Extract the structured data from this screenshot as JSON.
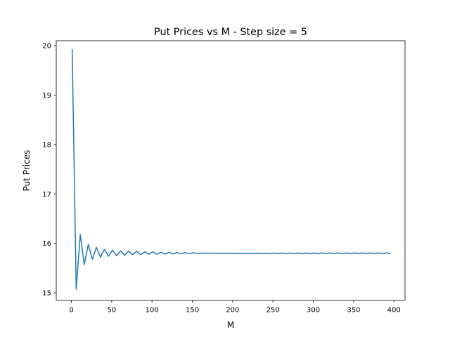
{
  "chart_data": {
    "type": "line",
    "title": "Put Prices vs M - Step size = 5",
    "xlabel": "M",
    "ylabel": "Put Prices",
    "xlim": [
      -18.75,
      413.75
    ],
    "ylim": [
      14.85,
      20.1
    ],
    "xticks": [
      0,
      50,
      100,
      150,
      200,
      250,
      300,
      350,
      400
    ],
    "yticks": [
      15,
      16,
      17,
      18,
      19,
      20
    ],
    "grid": false,
    "line_color": "#1f77b4",
    "series": [
      {
        "x": [
          1,
          6,
          11,
          16,
          21,
          26,
          31,
          36,
          41,
          46,
          51,
          56,
          61,
          66,
          71,
          76,
          81,
          86,
          91,
          96,
          101,
          106,
          111,
          116,
          121,
          126,
          131,
          136,
          141,
          146,
          151,
          156,
          161,
          166,
          171,
          176,
          181,
          186,
          191,
          196,
          201,
          206,
          211,
          216,
          221,
          226,
          231,
          236,
          241,
          246,
          251,
          256,
          261,
          266,
          271,
          276,
          281,
          286,
          291,
          296,
          301,
          306,
          311,
          316,
          321,
          326,
          331,
          336,
          341,
          346,
          351,
          356,
          361,
          366,
          371,
          376,
          381,
          386,
          391,
          396
        ],
        "y": [
          19.93,
          15.07,
          16.18,
          15.57,
          15.98,
          15.68,
          15.92,
          15.72,
          15.88,
          15.74,
          15.86,
          15.75,
          15.85,
          15.76,
          15.84,
          15.77,
          15.84,
          15.77,
          15.83,
          15.78,
          15.83,
          15.78,
          15.82,
          15.78,
          15.82,
          15.785,
          15.815,
          15.79,
          15.81,
          15.795,
          15.81,
          15.795,
          15.805,
          15.797,
          15.805,
          15.798,
          15.803,
          15.798,
          15.802,
          15.799,
          15.801,
          15.795,
          15.8,
          15.793,
          15.802,
          15.792,
          15.803,
          15.792,
          15.804,
          15.791,
          15.805,
          15.791,
          15.806,
          15.79,
          15.806,
          15.79,
          15.807,
          15.79,
          15.807,
          15.789,
          15.807,
          15.789,
          15.808,
          15.789,
          15.808,
          15.789,
          15.808,
          15.789,
          15.808,
          15.789,
          15.808,
          15.789,
          15.808,
          15.789,
          15.808,
          15.789,
          15.808,
          15.789,
          15.808,
          15.795
        ]
      }
    ]
  }
}
